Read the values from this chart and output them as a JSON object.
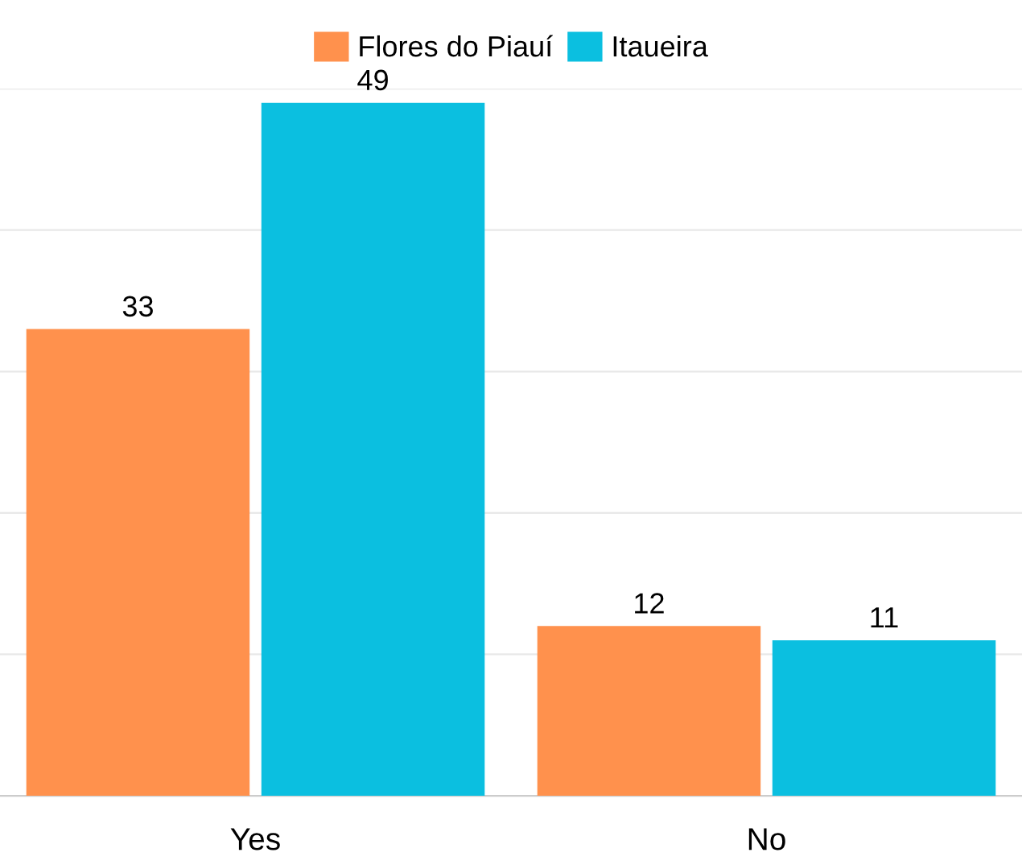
{
  "chart_data": {
    "type": "bar",
    "categories": [
      "Yes",
      "No"
    ],
    "series": [
      {
        "name": "Flores do Piauí",
        "color": "#ff914d",
        "values": [
          33,
          12
        ]
      },
      {
        "name": "Itaueira",
        "color": "#0bbfe0",
        "values": [
          49,
          11
        ]
      }
    ],
    "ylim": [
      0,
      50
    ],
    "yticks": [
      {
        "value": 0,
        "label": null
      },
      {
        "value": 10,
        "label": null
      },
      {
        "value": 20,
        "label": null
      },
      {
        "value": 30,
        "label": null
      },
      {
        "value": 40,
        "label": null
      },
      {
        "value": 50,
        "label": null
      }
    ],
    "tick_labels": "x",
    "grid": "y",
    "legend": "top",
    "data_labels": true
  }
}
